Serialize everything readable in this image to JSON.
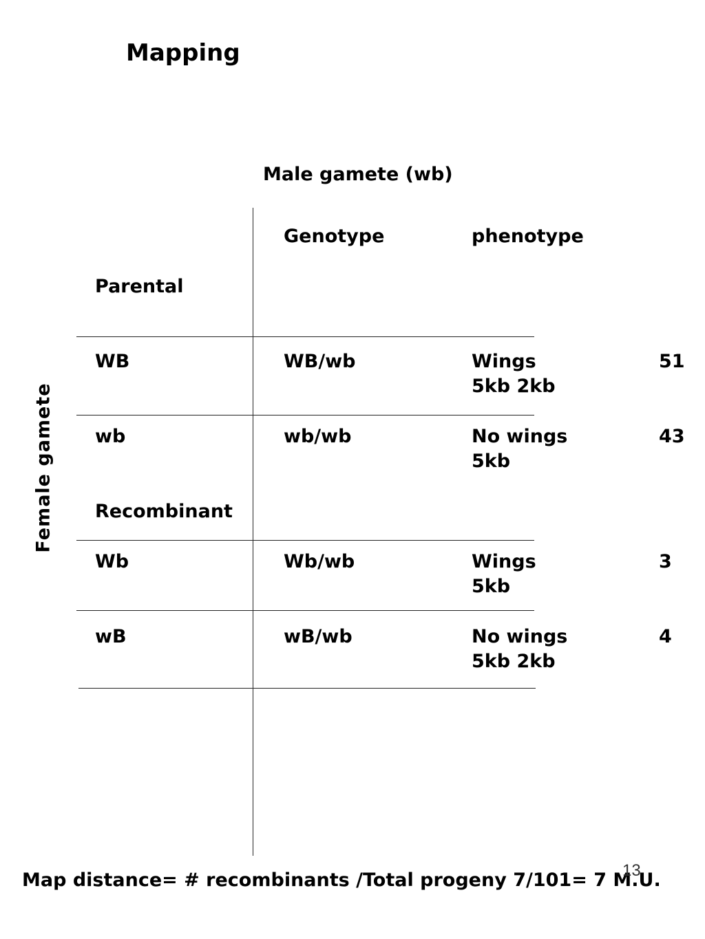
{
  "slide": {
    "title": "Mapping",
    "page_number": "13"
  },
  "table": {
    "column_title": "Male gamete (wb)",
    "row_title": "Female gamete",
    "header": {
      "genotype": "Genotype",
      "phenotype": "phenotype"
    },
    "groups": {
      "parental": "Parental",
      "recombinant": "Recombinant"
    },
    "rows": [
      {
        "gamete": "WB",
        "genotype": "WB/wb",
        "phenotype_line1": "Wings",
        "phenotype_line2": "5kb  2kb",
        "count": "51"
      },
      {
        "gamete": "wb",
        "genotype": "wb/wb",
        "phenotype_line1": "No wings",
        "phenotype_line2": "5kb",
        "count": "43"
      },
      {
        "gamete": "Wb",
        "genotype": "Wb/wb",
        "phenotype_line1": "Wings",
        "phenotype_line2": "5kb",
        "count": "3"
      },
      {
        "gamete": "wB",
        "genotype": "wB/wb",
        "phenotype_line1": "No wings",
        "phenotype_line2": "5kb  2kb",
        "count": "4"
      }
    ]
  },
  "footer": {
    "formula": "Map distance= # recombinants /Total progeny  7/101= 7 M.U."
  }
}
